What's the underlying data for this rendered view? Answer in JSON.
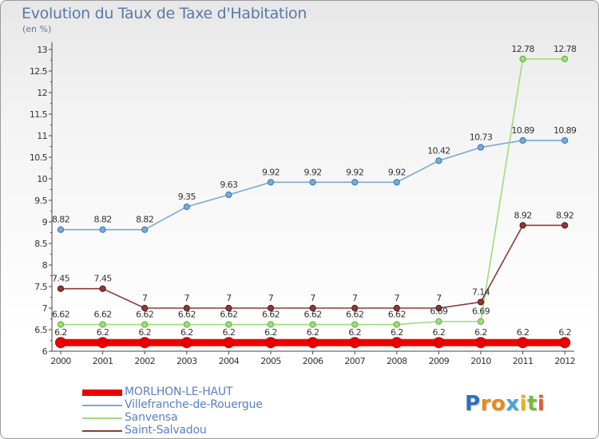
{
  "chart_data": {
    "type": "line",
    "title": "Evolution du Taux de Taxe d'Habitation",
    "unit_label": "(en %)",
    "x": [
      "2000",
      "2001",
      "2002",
      "2003",
      "2004",
      "2005",
      "2006",
      "2007",
      "2008",
      "2009",
      "2010",
      "2011",
      "2012"
    ],
    "ylim": [
      6,
      13
    ],
    "yticks": [
      "6",
      "6.5",
      "7",
      "7.5",
      "8",
      "8.5",
      "9",
      "9.5",
      "10",
      "10.5",
      "11",
      "11.5",
      "12",
      "12.5",
      "13"
    ],
    "grid": false,
    "legend_position": "bottom-left",
    "series": [
      {
        "name": "MORLHON-LE-HAUT",
        "color": "#ee0000",
        "values": [
          6.2,
          6.2,
          6.2,
          6.2,
          6.2,
          6.2,
          6.2,
          6.2,
          6.2,
          6.2,
          6.2,
          6.2,
          6.2
        ],
        "labels": [
          "6.2",
          "6.2",
          "6.2",
          "6.2",
          "6.2",
          "6.2",
          "6.2",
          "6.2",
          "6.2",
          "6.2",
          "6.2",
          "6.2",
          "6.2"
        ]
      },
      {
        "name": "Villefranche-de-Rouergue",
        "color": "#7aa9d6",
        "values": [
          8.82,
          8.82,
          8.82,
          9.35,
          9.63,
          9.92,
          9.92,
          9.92,
          9.92,
          10.42,
          10.73,
          10.89,
          10.89
        ],
        "labels": [
          "8.82",
          "8.82",
          "8.82",
          "9.35",
          "9.63",
          "9.92",
          "9.92",
          "9.92",
          "9.92",
          "10.42",
          "10.73",
          "10.89",
          "10.89"
        ]
      },
      {
        "name": "Sanvensa",
        "color": "#9edc7c",
        "values": [
          6.62,
          6.62,
          6.62,
          6.62,
          6.62,
          6.62,
          6.62,
          6.62,
          6.62,
          6.69,
          6.69,
          12.78,
          12.78
        ],
        "labels": [
          "6.62",
          "6.62",
          "6.62",
          "6.62",
          "6.62",
          "6.62",
          "6.62",
          "6.62",
          "6.62",
          "6.69",
          "6.69",
          "12.78",
          "12.78"
        ]
      },
      {
        "name": "Saint-Salvadou",
        "color": "#8b3a3a",
        "values": [
          7.45,
          7.45,
          7,
          7,
          7,
          7,
          7,
          7,
          7,
          7,
          7.14,
          8.92,
          8.92
        ],
        "labels": [
          "7.45",
          "7.45",
          "7",
          "7",
          "7",
          "7",
          "7",
          "7",
          "7",
          "7",
          "7.14",
          "8.92",
          "8.92"
        ]
      }
    ]
  },
  "brand": {
    "letters": [
      {
        "ch": "P",
        "color": "#2e6fc0"
      },
      {
        "ch": "r",
        "color": "#e38b1b"
      },
      {
        "ch": "o",
        "color": "#e38b1b"
      },
      {
        "ch": "x",
        "color": "#4aa3d8"
      },
      {
        "ch": "i",
        "color": "#e6b51e"
      },
      {
        "ch": "t",
        "color": "#7ab843"
      },
      {
        "ch": "i",
        "color": "#e05a3c"
      }
    ]
  }
}
